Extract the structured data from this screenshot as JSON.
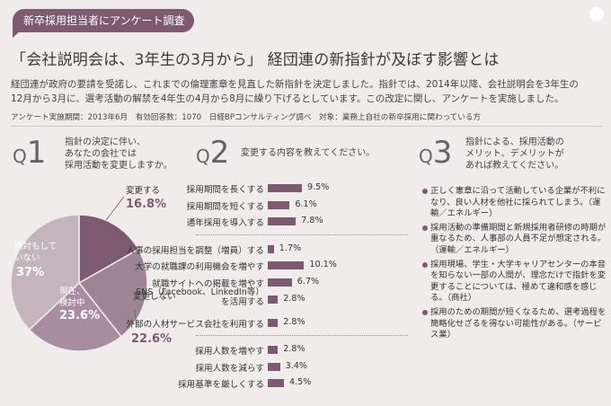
{
  "tag": "新卒採用担当者にアンケート調査",
  "headline": "「会社説明会は、3年生の3月から」 経団連の新指針が及ぼす影響とは",
  "lead": [
    "経団連が政府の要請を受諾し、これまでの倫理憲章を見直した新指針を決定しました。指針では、2014年以降、会社説明会を3年生の",
    "12月から3月に、選考活動の解禁を4年生の4月から8月に繰り下げるとしています。この改定に関し、アンケートを実施しました。"
  ],
  "meta": "アンケート実施期間：2013年6月　有効回答数：1070　日経BPコンサルティング調べ　対象：業務上自社の新卒採用に関わっている方",
  "q1": {
    "q": "Q",
    "n": "1",
    "text": [
      "指針の決定に伴い、",
      "あなたの会社では",
      "採用活動を変更しますか。"
    ]
  },
  "q2": {
    "q": "Q",
    "n": "2",
    "text": [
      "変更する内容を教えてください。"
    ]
  },
  "q3": {
    "q": "Q",
    "n": "3",
    "text": [
      "指針による、採用活動の",
      "メリット、デメリットが",
      "あれば教えてください。"
    ],
    "items": [
      "正しく憲章に沿って活動している企業が不利になり、良い人材を他社に採られてしまう。（運輸／エネルギー）",
      "採用活動の準備期間と新規採用者研修の時期が重なるため、人事部の人員不足が想定される。（運輸／エネルギー）",
      "採用現場、学生・大学キャリアセンターの本音を知らない一部の人間が、理念だけで指針を変更することについては、極めて違和感を感じる。（商社）",
      "採用のための期間が短くなるため、選考過程を簡略化せざるを得ない可能性がある。（サービス業）"
    ]
  },
  "chart_data": [
    {
      "type": "pie",
      "title": "",
      "slices": [
        {
          "label": "変更する",
          "value": 16.8,
          "value_text": "16.8%",
          "color": "#7d5a72"
        },
        {
          "label": "変更しない",
          "value": 22.6,
          "value_text": "22.6%",
          "color": "#9e8594"
        },
        {
          "label_lines": [
            "現在、",
            "検討中"
          ],
          "label": "現在、検討中",
          "value": 23.6,
          "value_text": "23.6%",
          "color": "#a88da0"
        },
        {
          "label_lines": [
            "検討もして",
            "いない"
          ],
          "label": "検討もしていない",
          "value": 37,
          "value_text": "37%",
          "color": "#c4b5bd"
        }
      ]
    },
    {
      "type": "bar",
      "orientation": "horizontal",
      "color": "#7d5a72",
      "groups": [
        {
          "items": [
            {
              "label": "採用期間を長くする",
              "value": 9.5,
              "value_text": "9.5%"
            },
            {
              "label": "採用期間を短くする",
              "value": 6.1,
              "value_text": "6.1%"
            },
            {
              "label": "通年採用を導入する",
              "value": 7.8,
              "value_text": "7.8%"
            }
          ]
        },
        {
          "items": [
            {
              "label": "人事の採用担当を調整（増員）する",
              "value": 1.7,
              "value_text": "1.7%"
            },
            {
              "label": "大学の就職課の利用機会を増やす",
              "value": 10.1,
              "value_text": "10.1%"
            },
            {
              "label": "就職サイトへの掲載を増やす",
              "value": 6.7,
              "value_text": "6.7%"
            },
            {
              "label": "SNS（Facebook、LinkedIn等）を活用する",
              "label_lines": [
                "SNS（Facebook、LinkedIn等）",
                "を活用する"
              ],
              "value": 2.8,
              "value_text": "2.8%"
            },
            {
              "label": "外部の人材サービス会社を利用する",
              "value": 2.8,
              "value_text": "2.8%"
            }
          ]
        },
        {
          "items": [
            {
              "label": "採用人数を増やす",
              "value": 2.8,
              "value_text": "2.8%"
            },
            {
              "label": "採用人数を減らす",
              "value": 3.4,
              "value_text": "3.4%"
            },
            {
              "label": "採用基準を厳しくする",
              "value": 4.5,
              "value_text": "4.5%"
            }
          ]
        }
      ]
    }
  ]
}
